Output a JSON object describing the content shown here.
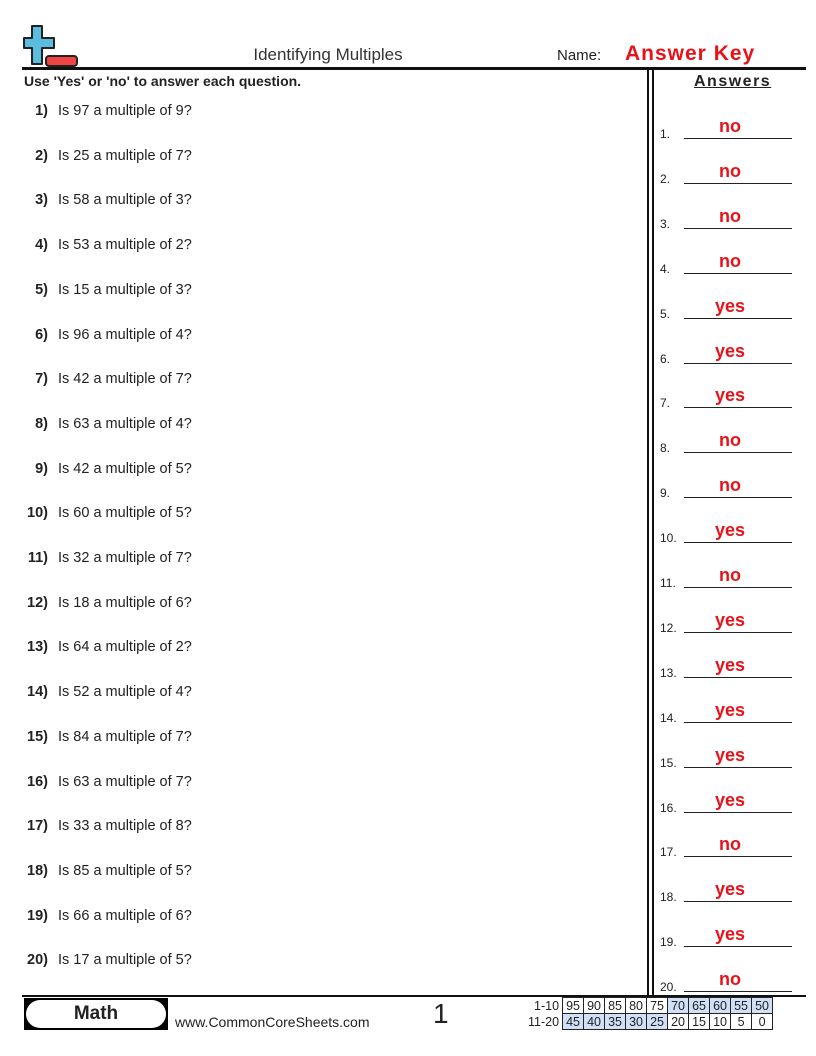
{
  "header": {
    "title": "Identifying Multiples",
    "name_label": "Name:",
    "name_value": "Answer Key",
    "instructions": "Use 'Yes' or 'no' to answer each question.",
    "answers_heading": "Answers"
  },
  "colors": {
    "accent": "#e8121a",
    "logo_blue": "#5bbde0",
    "logo_red": "#ef4444",
    "score_highlight": "#cfe0f7"
  },
  "questions": [
    {
      "num": "1)",
      "text": "Is 97 a multiple of 9?"
    },
    {
      "num": "2)",
      "text": "Is 25 a multiple of 7?"
    },
    {
      "num": "3)",
      "text": "Is 58 a multiple of 3?"
    },
    {
      "num": "4)",
      "text": "Is 53 a multiple of 2?"
    },
    {
      "num": "5)",
      "text": "Is 15 a multiple of 3?"
    },
    {
      "num": "6)",
      "text": "Is 96 a multiple of 4?"
    },
    {
      "num": "7)",
      "text": "Is 42 a multiple of 7?"
    },
    {
      "num": "8)",
      "text": "Is 63 a multiple of 4?"
    },
    {
      "num": "9)",
      "text": "Is 42 a multiple of 5?"
    },
    {
      "num": "10)",
      "text": "Is 60 a multiple of 5?"
    },
    {
      "num": "11)",
      "text": "Is 32 a multiple of 7?"
    },
    {
      "num": "12)",
      "text": "Is 18 a multiple of 6?"
    },
    {
      "num": "13)",
      "text": "Is 64 a multiple of 2?"
    },
    {
      "num": "14)",
      "text": "Is 52 a multiple of 4?"
    },
    {
      "num": "15)",
      "text": "Is 84 a multiple of 7?"
    },
    {
      "num": "16)",
      "text": "Is 63 a multiple of 7?"
    },
    {
      "num": "17)",
      "text": "Is 33 a multiple of 8?"
    },
    {
      "num": "18)",
      "text": "Is 85 a multiple of 5?"
    },
    {
      "num": "19)",
      "text": "Is 66 a multiple of 6?"
    },
    {
      "num": "20)",
      "text": "Is 17 a multiple of 5?"
    }
  ],
  "answers": [
    {
      "num": "1.",
      "value": "no"
    },
    {
      "num": "2.",
      "value": "no"
    },
    {
      "num": "3.",
      "value": "no"
    },
    {
      "num": "4.",
      "value": "no"
    },
    {
      "num": "5.",
      "value": "yes"
    },
    {
      "num": "6.",
      "value": "yes"
    },
    {
      "num": "7.",
      "value": "yes"
    },
    {
      "num": "8.",
      "value": "no"
    },
    {
      "num": "9.",
      "value": "no"
    },
    {
      "num": "10.",
      "value": "yes"
    },
    {
      "num": "11.",
      "value": "no"
    },
    {
      "num": "12.",
      "value": "yes"
    },
    {
      "num": "13.",
      "value": "yes"
    },
    {
      "num": "14.",
      "value": "yes"
    },
    {
      "num": "15.",
      "value": "yes"
    },
    {
      "num": "16.",
      "value": "yes"
    },
    {
      "num": "17.",
      "value": "no"
    },
    {
      "num": "18.",
      "value": "yes"
    },
    {
      "num": "19.",
      "value": "yes"
    },
    {
      "num": "20.",
      "value": "no"
    }
  ],
  "footer": {
    "subject": "Math",
    "website": "www.CommonCoreSheets.com",
    "page_number": "1",
    "score_rows": [
      {
        "label": "1-10",
        "values": [
          "95",
          "90",
          "85",
          "80",
          "75",
          "70",
          "65",
          "60",
          "55",
          "50"
        ],
        "highlighted": [
          false,
          false,
          false,
          false,
          false,
          true,
          true,
          true,
          true,
          true
        ]
      },
      {
        "label": "11-20",
        "values": [
          "45",
          "40",
          "35",
          "30",
          "25",
          "20",
          "15",
          "10",
          "5",
          "0"
        ],
        "highlighted": [
          true,
          true,
          true,
          true,
          true,
          false,
          false,
          false,
          false,
          false
        ]
      }
    ]
  }
}
